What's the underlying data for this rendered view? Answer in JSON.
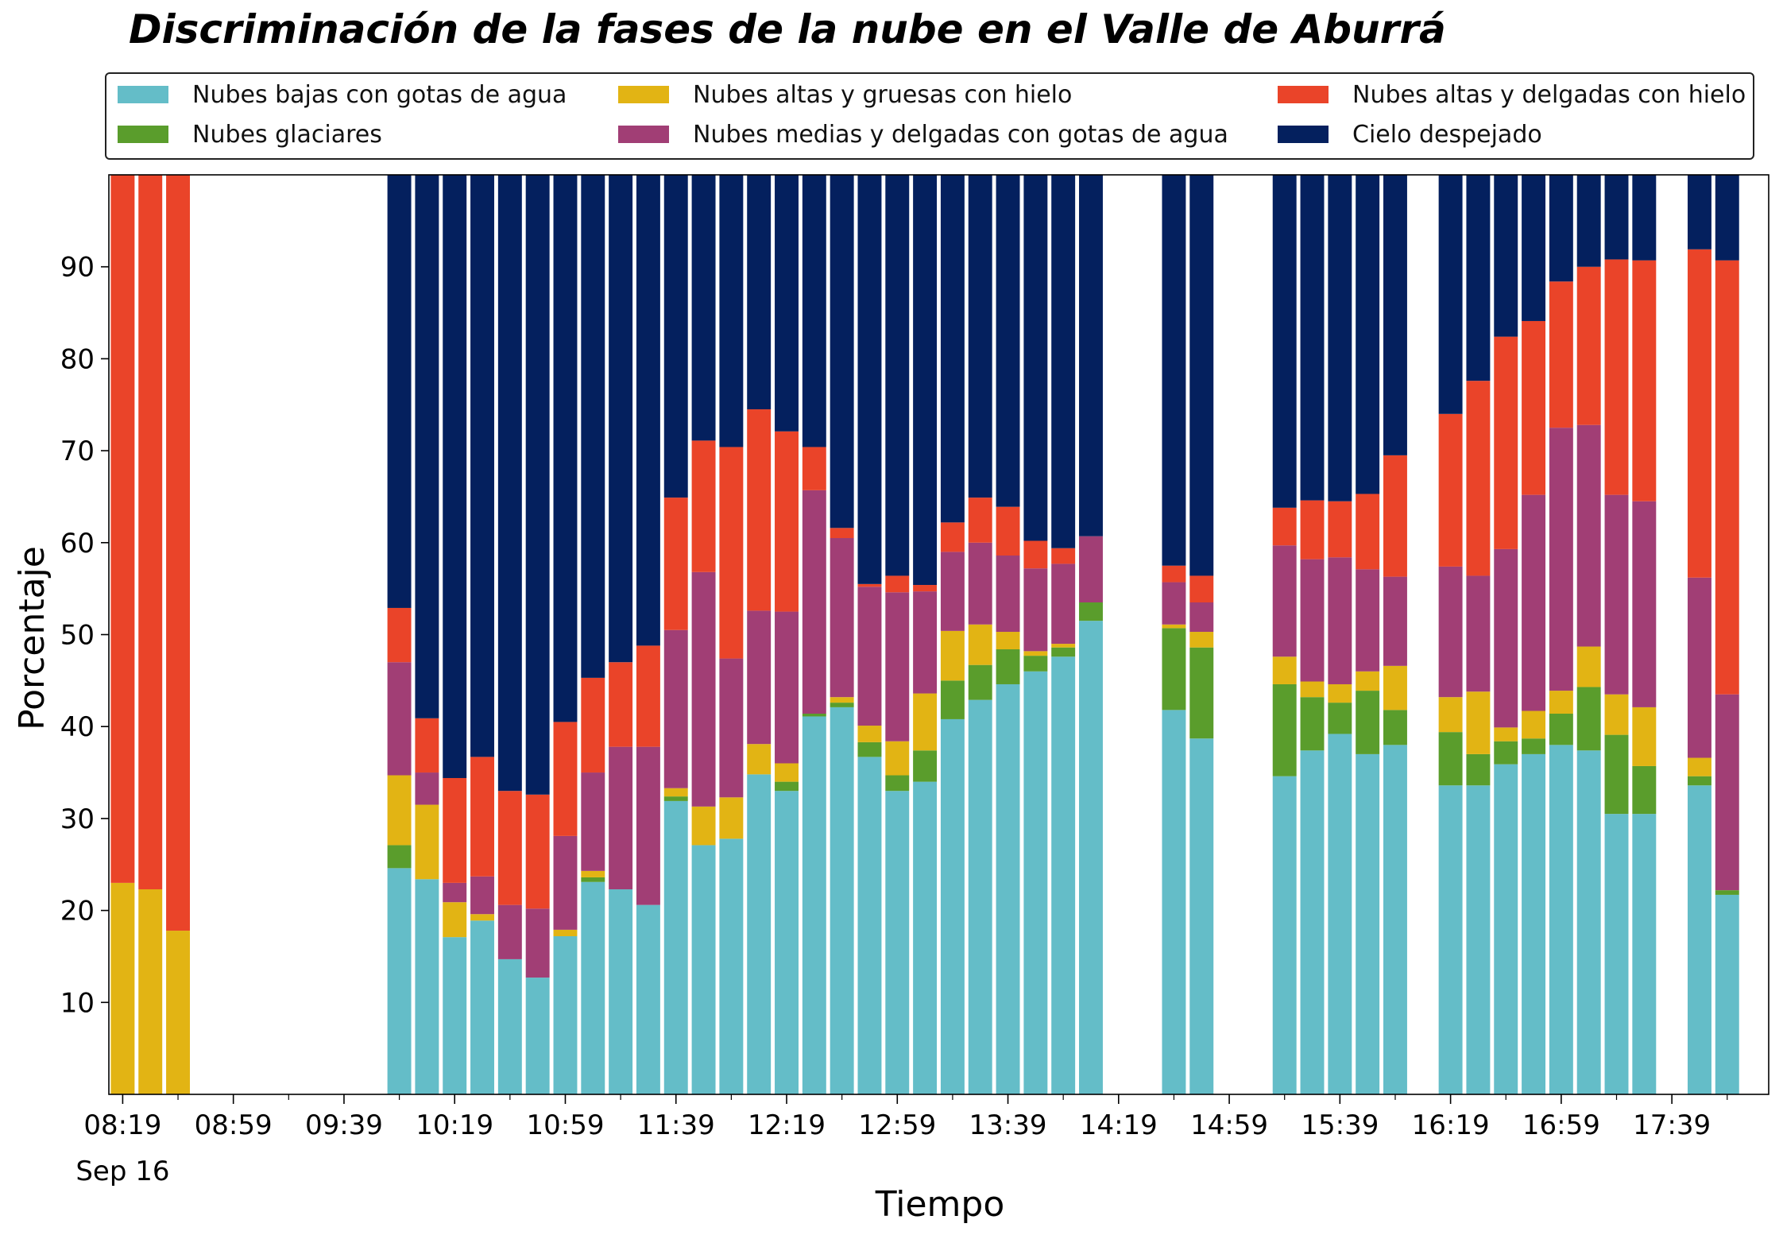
{
  "chart_data": {
    "type": "bar",
    "stacked": true,
    "title": "Discriminación de la fases de la nube en el Valle de Aburrá",
    "xlabel": "Tiempo",
    "ylabel": "Porcentaje",
    "ylim": [
      0,
      100
    ],
    "yticks": [
      10,
      20,
      30,
      40,
      50,
      60,
      70,
      80,
      90
    ],
    "xlim": [
      -0.5,
      59.5
    ],
    "xticks": [
      {
        "pos": 0,
        "label": "08:19",
        "sublabel": "Sep 16"
      },
      {
        "pos": 4,
        "label": "08:59"
      },
      {
        "pos": 8,
        "label": "09:39"
      },
      {
        "pos": 12,
        "label": "10:19"
      },
      {
        "pos": 16,
        "label": "10:59"
      },
      {
        "pos": 20,
        "label": "11:39"
      },
      {
        "pos": 24,
        "label": "12:19"
      },
      {
        "pos": 28,
        "label": "12:59"
      },
      {
        "pos": 32,
        "label": "13:39"
      },
      {
        "pos": 36,
        "label": "14:19"
      },
      {
        "pos": 40,
        "label": "14:59"
      },
      {
        "pos": 44,
        "label": "15:39"
      },
      {
        "pos": 48,
        "label": "16:19"
      },
      {
        "pos": 52,
        "label": "16:59"
      },
      {
        "pos": 56,
        "label": "17:39"
      }
    ],
    "minor_ticks": [
      2,
      6,
      10,
      14,
      18,
      22,
      26,
      30,
      34,
      38,
      42,
      46,
      50,
      54,
      58
    ],
    "legend_position": "top",
    "series": [
      {
        "name": "Nubes bajas con gotas de agua",
        "color": "#64bdc8"
      },
      {
        "name": "Nubes glaciares",
        "color": "#5a9d2c"
      },
      {
        "name": "Nubes altas y gruesas con hielo",
        "color": "#e2b414"
      },
      {
        "name": "Nubes medias y delgadas con gotas de agua",
        "color": "#a13e75"
      },
      {
        "name": "Nubes altas y delgadas con hielo",
        "color": "#ea4429"
      },
      {
        "name": "Cielo despejado",
        "color": "#04205e"
      }
    ],
    "bars": [
      {
        "x": 0,
        "values": [
          0,
          0,
          23,
          0,
          77,
          0
        ]
      },
      {
        "x": 1,
        "values": [
          0,
          0,
          22.3,
          0,
          77.7,
          0
        ]
      },
      {
        "x": 2,
        "values": [
          0,
          0,
          17.8,
          0,
          82.2,
          0
        ]
      },
      {
        "x": 10,
        "values": [
          24.6,
          2.5,
          7.6,
          12.3,
          5.9,
          47.1
        ]
      },
      {
        "x": 11,
        "values": [
          23.4,
          0,
          8.1,
          3.5,
          5.9,
          59.1
        ]
      },
      {
        "x": 12,
        "values": [
          17.1,
          0,
          3.8,
          2.1,
          11.4,
          65.6
        ]
      },
      {
        "x": 13,
        "values": [
          18.9,
          0,
          0.7,
          4.1,
          13,
          63.3
        ]
      },
      {
        "x": 14,
        "values": [
          14.7,
          0,
          0,
          5.9,
          12.4,
          67
        ]
      },
      {
        "x": 15,
        "values": [
          12.7,
          0,
          0,
          7.5,
          12.4,
          67.4
        ]
      },
      {
        "x": 16,
        "values": [
          17.2,
          0,
          0.7,
          10.2,
          12.4,
          59.5
        ]
      },
      {
        "x": 17,
        "values": [
          23.1,
          0.5,
          0.7,
          10.7,
          10.3,
          54.7
        ]
      },
      {
        "x": 18,
        "values": [
          22.3,
          0,
          0,
          15.5,
          9.2,
          53
        ]
      },
      {
        "x": 19,
        "values": [
          20.6,
          0,
          0,
          17.2,
          11,
          51.2
        ]
      },
      {
        "x": 20,
        "values": [
          31.9,
          0.5,
          0.9,
          17.2,
          14.4,
          35.1
        ]
      },
      {
        "x": 21,
        "values": [
          27.1,
          0,
          4.2,
          25.5,
          14.3,
          28.9
        ]
      },
      {
        "x": 22,
        "values": [
          27.8,
          0,
          4.5,
          15.1,
          23,
          29.6
        ]
      },
      {
        "x": 23,
        "values": [
          34.8,
          0,
          3.3,
          14.5,
          21.9,
          25.5
        ]
      },
      {
        "x": 24,
        "values": [
          33,
          1,
          2,
          16.5,
          19.6,
          27.9
        ]
      },
      {
        "x": 25,
        "values": [
          41.1,
          0.3,
          0,
          24.3,
          4.7,
          29.6
        ]
      },
      {
        "x": 26,
        "values": [
          42.1,
          0.5,
          0.6,
          17.3,
          1.1,
          38.4
        ]
      },
      {
        "x": 27,
        "values": [
          36.7,
          1.6,
          1.8,
          15.1,
          0.3,
          44.5
        ]
      },
      {
        "x": 28,
        "values": [
          33,
          1.7,
          3.7,
          16.2,
          1.8,
          43.6
        ]
      },
      {
        "x": 29,
        "values": [
          34,
          3.4,
          6.2,
          11.1,
          0.7,
          44.6
        ]
      },
      {
        "x": 30,
        "values": [
          40.8,
          4.2,
          5.4,
          8.6,
          3.2,
          37.8
        ]
      },
      {
        "x": 31,
        "values": [
          42.9,
          3.8,
          4.4,
          8.9,
          4.9,
          35.1
        ]
      },
      {
        "x": 32,
        "values": [
          44.6,
          3.8,
          1.9,
          8.3,
          5.3,
          36.1
        ]
      },
      {
        "x": 33,
        "values": [
          46,
          1.7,
          0.5,
          9,
          3,
          39.8
        ]
      },
      {
        "x": 34,
        "values": [
          47.6,
          1,
          0.4,
          8.7,
          1.7,
          40.6
        ]
      },
      {
        "x": 35,
        "values": [
          51.5,
          2,
          0,
          7.2,
          0,
          39.3
        ]
      },
      {
        "x": 38,
        "values": [
          41.8,
          8.9,
          0.4,
          4.6,
          1.8,
          42.5
        ]
      },
      {
        "x": 39,
        "values": [
          38.7,
          9.9,
          1.7,
          3.2,
          2.9,
          43.6
        ]
      },
      {
        "x": 42,
        "values": [
          34.6,
          10,
          3,
          12.1,
          4.1,
          36.2
        ]
      },
      {
        "x": 43,
        "values": [
          37.4,
          5.8,
          1.7,
          13.3,
          6.4,
          35.4
        ]
      },
      {
        "x": 44,
        "values": [
          39.2,
          3.4,
          2,
          13.8,
          6.1,
          35.5
        ]
      },
      {
        "x": 45,
        "values": [
          37,
          6.9,
          2.1,
          11.1,
          8.2,
          34.7
        ]
      },
      {
        "x": 46,
        "values": [
          38,
          3.8,
          4.8,
          9.7,
          13.2,
          30.5
        ]
      },
      {
        "x": 48,
        "values": [
          33.6,
          5.8,
          3.8,
          14.2,
          16.6,
          26
        ]
      },
      {
        "x": 49,
        "values": [
          33.6,
          3.4,
          6.8,
          12.6,
          21.2,
          22.4
        ]
      },
      {
        "x": 50,
        "values": [
          35.9,
          2.5,
          1.5,
          19.4,
          23.1,
          17.6
        ]
      },
      {
        "x": 51,
        "values": [
          37,
          1.7,
          3,
          23.5,
          18.9,
          15.9
        ]
      },
      {
        "x": 52,
        "values": [
          38,
          3.4,
          2.5,
          28.6,
          15.9,
          11.6
        ]
      },
      {
        "x": 53,
        "values": [
          37.4,
          6.9,
          4.4,
          24.1,
          17.2,
          10
        ]
      },
      {
        "x": 54,
        "values": [
          30.5,
          8.6,
          4.4,
          21.7,
          25.6,
          9.2
        ]
      },
      {
        "x": 55,
        "values": [
          30.5,
          5.2,
          6.4,
          22.4,
          26.2,
          9.3
        ]
      },
      {
        "x": 57,
        "values": [
          33.6,
          1,
          2,
          19.6,
          35.7,
          8.1
        ]
      },
      {
        "x": 58,
        "values": [
          21.7,
          0.5,
          0,
          21.3,
          47.2,
          9.3
        ]
      }
    ]
  }
}
